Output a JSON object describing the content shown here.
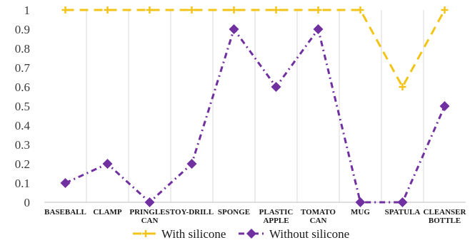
{
  "chart_data": {
    "type": "line",
    "categories": [
      [
        "BASEBALL"
      ],
      [
        "CLAMP"
      ],
      [
        "PRINGLES",
        "CAN"
      ],
      [
        "TOY-DRILL"
      ],
      [
        "SPONGE"
      ],
      [
        "PLASTIC",
        "APPLE"
      ],
      [
        "TOMATO",
        "CAN"
      ],
      [
        "MUG"
      ],
      [
        "SPATULA"
      ],
      [
        "CLEANSER",
        "BOTTLE"
      ]
    ],
    "series": [
      {
        "name": "With silicone",
        "values": [
          1,
          1,
          1,
          1,
          1,
          1,
          1,
          1,
          0.6,
          1
        ],
        "color": "#F2C418",
        "line_style": "dashed",
        "marker": "plus"
      },
      {
        "name": "Without silicone",
        "values": [
          0.1,
          0.2,
          0,
          0.2,
          0.9,
          0.6,
          0.9,
          0,
          0,
          0.5
        ],
        "color": "#7030A0",
        "line_style": "dash-dot",
        "marker": "diamond"
      }
    ],
    "y_ticks": [
      "0",
      "0.1",
      "0.2",
      "0.3",
      "0.4",
      "0.5",
      "0.6",
      "0.7",
      "0.8",
      "0.9",
      "1"
    ],
    "ylim": [
      0,
      1
    ],
    "grid": "vertical",
    "legend": "bottom",
    "title": "",
    "xlabel": "",
    "ylabel": ""
  }
}
